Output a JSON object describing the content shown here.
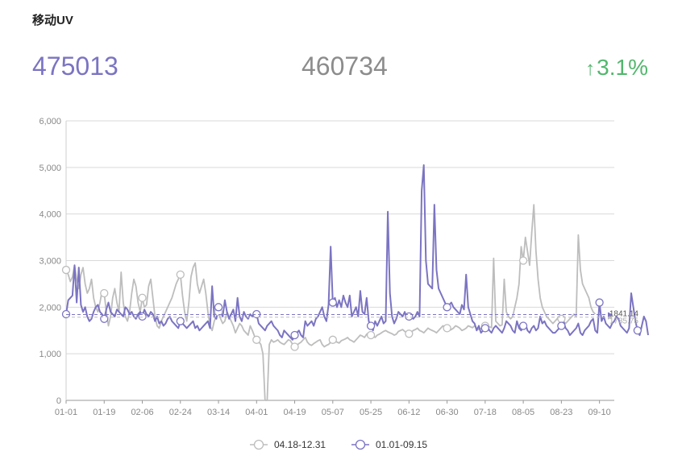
{
  "header": {
    "title": "移动UV",
    "current_value": "475013",
    "previous_value": "460734",
    "change_arrow": "↑",
    "change_value": "3.1%"
  },
  "colors": {
    "current": "#7b74c2",
    "previous": "#bdbdbd",
    "positive": "#52b76d"
  },
  "chart_data": {
    "type": "line",
    "ylim": [
      0,
      6000
    ],
    "yticks": [
      0,
      1000,
      2000,
      3000,
      4000,
      5000,
      6000
    ],
    "ytick_labels": [
      "0",
      "1,000",
      "2,000",
      "3,000",
      "4,000",
      "5,000",
      "6,000"
    ],
    "x_tick_labels": [
      "01-01",
      "01-19",
      "02-06",
      "02-24",
      "03-14",
      "04-01",
      "04-19",
      "05-07",
      "05-25",
      "06-12",
      "06-30",
      "07-18",
      "08-05",
      "08-23",
      "09-10"
    ],
    "x_tick_step": 18,
    "n_points": 260,
    "grid": true,
    "legend_position": "bottom",
    "series": [
      {
        "name": "04.18-12.31",
        "color": "#bdbdbd",
        "average_label": "1785.75",
        "average": 1785.75,
        "values": [
          2800,
          2700,
          2550,
          2650,
          2900,
          2600,
          2400,
          2700,
          2850,
          2500,
          2300,
          2400,
          2600,
          2200,
          2000,
          1900,
          2100,
          2350,
          2300,
          1900,
          1600,
          1800,
          2200,
          2400,
          2100,
          1900,
          2750,
          2100,
          1800,
          1700,
          1900,
          2300,
          2600,
          2450,
          2100,
          1900,
          2200,
          2000,
          2050,
          2450,
          2600,
          2200,
          1800,
          1600,
          1550,
          1700,
          1800,
          1900,
          2000,
          2100,
          2200,
          2350,
          2500,
          2600,
          2700,
          2250,
          1900,
          1700,
          2100,
          2650,
          2850,
          2950,
          2500,
          2300,
          2450,
          2600,
          2300,
          1900,
          1600,
          1500,
          1700,
          1800,
          1900,
          1750,
          1650,
          1700,
          1900,
          1800,
          1700,
          1600,
          1450,
          1550,
          1650,
          1600,
          1500,
          1450,
          1400,
          1600,
          1500,
          1380,
          1300,
          1260,
          1200,
          1000,
          0,
          0,
          1200,
          1300,
          1250,
          1270,
          1300,
          1250,
          1220,
          1200,
          1250,
          1300,
          1280,
          1200,
          1150,
          1180,
          1220,
          1250,
          1300,
          1350,
          1250,
          1200,
          1180,
          1220,
          1250,
          1280,
          1300,
          1200,
          1150,
          1180,
          1200,
          1250,
          1300,
          1270,
          1250,
          1230,
          1280,
          1300,
          1320,
          1350,
          1300,
          1280,
          1250,
          1300,
          1350,
          1400,
          1380,
          1350,
          1420,
          1450,
          1400,
          1380,
          1350,
          1400,
          1420,
          1450,
          1480,
          1500,
          1470,
          1450,
          1430,
          1400,
          1420,
          1480,
          1500,
          1520,
          1480,
          1450,
          1430,
          1460,
          1500,
          1520,
          1550,
          1500,
          1480,
          1450,
          1500,
          1550,
          1520,
          1500,
          1480,
          1450,
          1500,
          1550,
          1600,
          1580,
          1550,
          1500,
          1520,
          1550,
          1600,
          1580,
          1550,
          1500,
          1520,
          1550,
          1600,
          1580,
          1560,
          1600,
          1550,
          1520,
          1540,
          1580,
          1600,
          1620,
          1580,
          1560,
          3050,
          1700,
          1650,
          1600,
          1620,
          2600,
          1900,
          1800,
          1750,
          1800,
          2000,
          2200,
          2500,
          3300,
          3000,
          3500,
          3200,
          2900,
          3600,
          4200,
          3200,
          2600,
          2200,
          2000,
          1900,
          1800,
          1750,
          1700,
          1650,
          1700,
          1750,
          1800,
          1750,
          1700,
          1650,
          1700,
          1750,
          1800,
          1850,
          1800,
          3550,
          2800,
          2500,
          2400,
          2300,
          2200,
          2000,
          1900,
          1850
        ]
      },
      {
        "name": "01.01-09.15",
        "color": "#7b74c2",
        "average_label": "1841.14",
        "average": 1841.14,
        "values": [
          1850,
          2150,
          2200,
          2250,
          2900,
          2100,
          2850,
          2050,
          1900,
          2000,
          1800,
          1700,
          1750,
          1900,
          2000,
          2050,
          1900,
          1850,
          1750,
          1950,
          2100,
          1900,
          1850,
          1800,
          1950,
          1900,
          1850,
          1800,
          2000,
          1950,
          1850,
          1900,
          1800,
          1750,
          1850,
          1900,
          1800,
          1950,
          1850,
          1800,
          1900,
          1850,
          1700,
          1800,
          1650,
          1700,
          1600,
          1650,
          1750,
          1800,
          1700,
          1650,
          1600,
          1550,
          1700,
          1650,
          1600,
          1550,
          1600,
          1650,
          1700,
          1550,
          1600,
          1500,
          1550,
          1600,
          1650,
          1700,
          1550,
          2450,
          1800,
          1750,
          2000,
          1900,
          1800,
          2150,
          1900,
          1750,
          1850,
          1950,
          1700,
          2200,
          1800,
          1700,
          1900,
          1800,
          1750,
          1850,
          1800,
          1900,
          1850,
          1650,
          1600,
          1550,
          1500,
          1600,
          1650,
          1700,
          1600,
          1550,
          1500,
          1400,
          1350,
          1500,
          1450,
          1400,
          1350,
          1300,
          1400,
          1450,
          1500,
          1400,
          1350,
          1700,
          1600,
          1650,
          1700,
          1600,
          1750,
          1800,
          1900,
          2000,
          1800,
          1700,
          2050,
          3300,
          2100,
          2200,
          2000,
          2150,
          2000,
          2250,
          2100,
          2000,
          2250,
          1800,
          1900,
          2000,
          1800,
          2350,
          1900,
          1850,
          2200,
          1700,
          1600,
          1500,
          1700,
          1600,
          1700,
          1800,
          1650,
          1700,
          4050,
          2300,
          1800,
          1650,
          1750,
          1900,
          1850,
          1800,
          1900,
          1750,
          1800,
          1850,
          1750,
          1800,
          1900,
          1800,
          4500,
          5050,
          3000,
          2500,
          2450,
          2400,
          4200,
          2800,
          2400,
          2300,
          2200,
          2100,
          2000,
          2050,
          2100,
          2000,
          1950,
          1900,
          1850,
          2050,
          1950,
          2700,
          2000,
          1850,
          1700,
          1650,
          1500,
          1600,
          1450,
          1500,
          1550,
          1600,
          1500,
          1450,
          1550,
          1600,
          1550,
          1500,
          1450,
          1550,
          1700,
          1650,
          1600,
          1500,
          1450,
          1700,
          1550,
          1500,
          1600,
          1650,
          1500,
          1450,
          1550,
          1600,
          1500,
          1550,
          1800,
          1650,
          1700,
          1600,
          1550,
          1500,
          1450,
          1450,
          1500,
          1550,
          1600,
          1700,
          1550,
          1500,
          1400,
          1450,
          1500,
          1550,
          1650,
          1450,
          1400,
          1500,
          1550,
          1600,
          1700,
          1750,
          1500,
          1450,
          2100,
          1700,
          1800,
          1650,
          1600,
          1550,
          1650,
          1700,
          1800,
          1750,
          1600,
          1550,
          1500,
          1450,
          1550,
          2300,
          2000,
          1700,
          1500,
          1400,
          1600,
          1800,
          1700,
          1400
        ]
      }
    ]
  }
}
